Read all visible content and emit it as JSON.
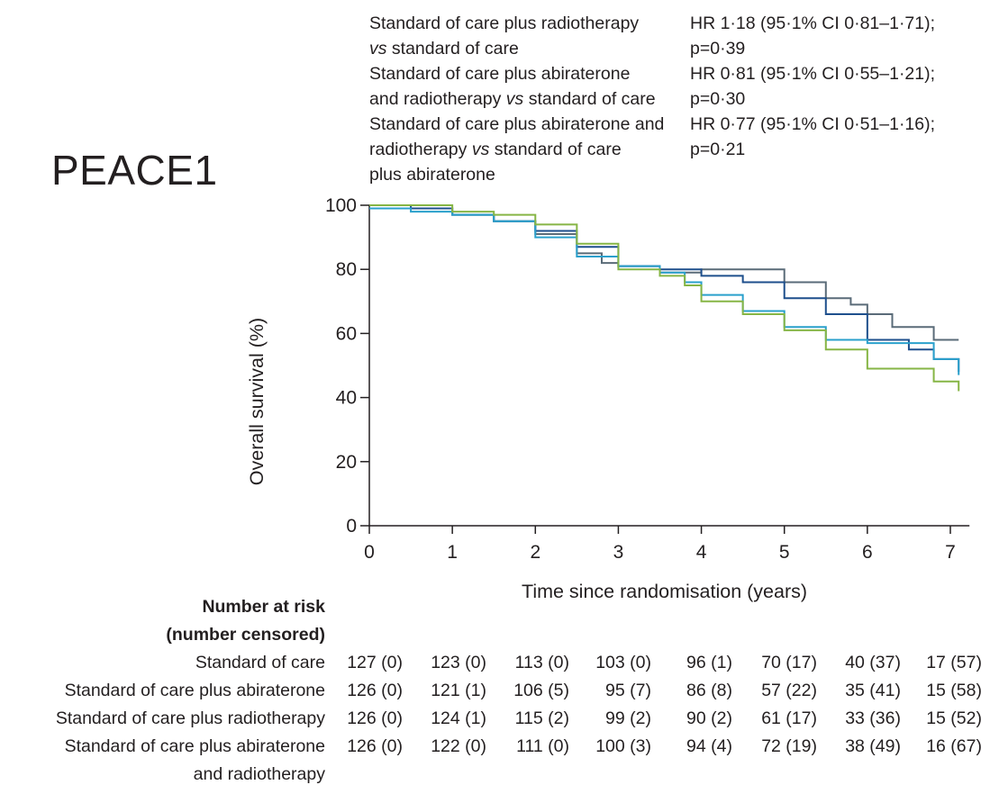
{
  "study_title": "PEACE1",
  "hazard_ratios": [
    {
      "label_line1": "Standard of care plus radiotherapy",
      "label_line2_italic": "vs",
      "label_line2_rest": " standard of care",
      "label_line3": "",
      "value_line1": "HR 1·18 (95·1% CI 0·81–1·71);",
      "value_line2": "p=0·39"
    },
    {
      "label_line1": "Standard of care plus abiraterone",
      "label_line2_pre": "and radiotherapy ",
      "label_line2_italic": "vs",
      "label_line2_rest": " standard of care",
      "label_line3": "",
      "value_line1": "HR 0·81 (95·1% CI 0·55–1·21);",
      "value_line2": "p=0·30"
    },
    {
      "label_line1": "Standard of care plus abiraterone and",
      "label_line2_pre": "radiotherapy ",
      "label_line2_italic": "vs",
      "label_line2_rest": " standard of care",
      "label_line3": "plus abiraterone",
      "value_line1": "HR 0·77 (95·1% CI 0·51–1·16);",
      "value_line2": "p=0·21"
    }
  ],
  "chart_data": {
    "type": "line",
    "subtype": "kaplan-meier step",
    "xlabel": "Time since randomisation (years)",
    "ylabel": "Overall survival (%)",
    "xlim": [
      0,
      7.1
    ],
    "ylim": [
      0,
      100
    ],
    "x_ticks": [
      "0",
      "1",
      "2",
      "3",
      "4",
      "5",
      "6",
      "7"
    ],
    "y_ticks": [
      "0",
      "20",
      "40",
      "60",
      "80",
      "100"
    ],
    "series": [
      {
        "name": "Standard of care",
        "color": "#5a6b78",
        "points": [
          [
            0,
            100
          ],
          [
            0.5,
            99
          ],
          [
            1,
            97
          ],
          [
            1.5,
            95
          ],
          [
            2,
            91
          ],
          [
            2.5,
            85
          ],
          [
            2.8,
            82
          ],
          [
            3,
            81
          ],
          [
            3.5,
            79
          ],
          [
            4,
            80
          ],
          [
            4.5,
            80
          ],
          [
            5,
            76
          ],
          [
            5.5,
            71
          ],
          [
            5.8,
            69
          ],
          [
            6,
            66
          ],
          [
            6.3,
            62
          ],
          [
            6.8,
            58
          ],
          [
            7.1,
            58
          ]
        ]
      },
      {
        "name": "Standard of care plus abiraterone",
        "color": "#1e4f8c",
        "points": [
          [
            0,
            100
          ],
          [
            0.5,
            99
          ],
          [
            1,
            97
          ],
          [
            1.5,
            95
          ],
          [
            2,
            92
          ],
          [
            2.5,
            87
          ],
          [
            3,
            81
          ],
          [
            3.5,
            80
          ],
          [
            4,
            78
          ],
          [
            4.5,
            76
          ],
          [
            5,
            71
          ],
          [
            5.5,
            66
          ],
          [
            6,
            58
          ],
          [
            6.5,
            55
          ],
          [
            6.8,
            52
          ],
          [
            7.1,
            48
          ]
        ]
      },
      {
        "name": "Standard of care plus radiotherapy",
        "color": "#2aa0cc",
        "points": [
          [
            0,
            99
          ],
          [
            0.5,
            98
          ],
          [
            1,
            97
          ],
          [
            1.5,
            95
          ],
          [
            2,
            90
          ],
          [
            2.5,
            84
          ],
          [
            3,
            81
          ],
          [
            3.5,
            79
          ],
          [
            3.8,
            76
          ],
          [
            4,
            72
          ],
          [
            4.5,
            67
          ],
          [
            5,
            62
          ],
          [
            5.5,
            58
          ],
          [
            6,
            57
          ],
          [
            6.5,
            57
          ],
          [
            6.8,
            52
          ],
          [
            7.1,
            47
          ]
        ]
      },
      {
        "name": "Standard of care plus abiraterone and radiotherapy",
        "color": "#86b545",
        "points": [
          [
            0,
            100
          ],
          [
            0.5,
            100
          ],
          [
            1,
            98
          ],
          [
            1.5,
            97
          ],
          [
            2,
            94
          ],
          [
            2.5,
            88
          ],
          [
            3,
            80
          ],
          [
            3.5,
            78
          ],
          [
            3.8,
            75
          ],
          [
            4,
            70
          ],
          [
            4.5,
            66
          ],
          [
            5,
            61
          ],
          [
            5.5,
            55
          ],
          [
            6,
            49
          ],
          [
            6.5,
            49
          ],
          [
            6.8,
            45
          ],
          [
            7.1,
            42
          ]
        ]
      }
    ]
  },
  "risk_table": {
    "header_line1": "Number at risk",
    "header_line2": "(number censored)",
    "rows": [
      {
        "arm_line1": "Standard of care",
        "arm_line2": "",
        "cells": [
          "127 (0)",
          "123 (0)",
          "113 (0)",
          "103 (0)",
          "96 (1)",
          "70 (17)",
          "40 (37)",
          "17 (57)"
        ]
      },
      {
        "arm_line1": "Standard of care plus abiraterone",
        "arm_line2": "",
        "cells": [
          "126 (0)",
          "121 (1)",
          "106 (5)",
          "95 (7)",
          "86 (8)",
          "57 (22)",
          "35 (41)",
          "15 (58)"
        ]
      },
      {
        "arm_line1": "Standard of care plus radiotherapy",
        "arm_line2": "",
        "cells": [
          "126 (0)",
          "124 (1)",
          "115 (2)",
          "99 (2)",
          "90 (2)",
          "61 (17)",
          "33 (36)",
          "15 (52)"
        ]
      },
      {
        "arm_line1": "Standard of care plus abiraterone",
        "arm_line2": "and radiotherapy",
        "cells": [
          "126 (0)",
          "122 (0)",
          "111 (0)",
          "100 (3)",
          "94 (4)",
          "72 (19)",
          "38 (49)",
          "16 (67)"
        ]
      }
    ]
  }
}
